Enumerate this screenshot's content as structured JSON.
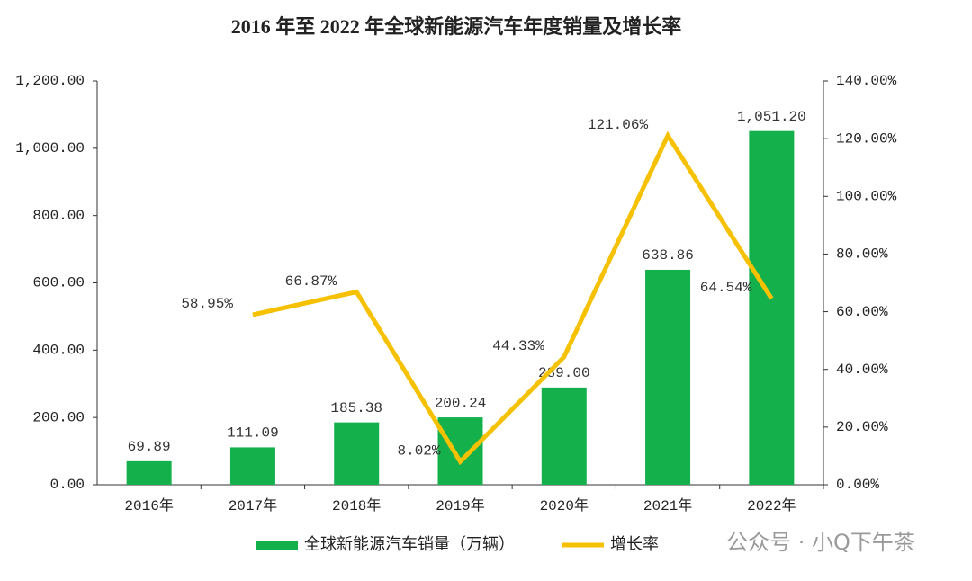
{
  "chart_data": {
    "type": "bar",
    "title": "2016 年至 2022 年全球新能源汽车年度销量及增长率",
    "categories": [
      "2016年",
      "2017年",
      "2018年",
      "2019年",
      "2020年",
      "2021年",
      "2022年"
    ],
    "series": [
      {
        "name": "全球新能源汽车销量（万辆）",
        "type": "bar",
        "color": "#13b04c",
        "values": [
          69.89,
          111.09,
          185.38,
          200.24,
          289.0,
          638.86,
          1051.2
        ],
        "value_labels": [
          "69.89",
          "111.09",
          "185.38",
          "200.24",
          "289.00",
          "638.86",
          "1,051.20"
        ]
      },
      {
        "name": "增长率",
        "type": "line",
        "axis": "y2",
        "color": "#f6c100",
        "values": [
          null,
          58.95,
          66.87,
          8.02,
          44.33,
          121.06,
          64.54
        ],
        "value_labels": [
          null,
          "58.95%",
          "66.87%",
          "8.02%",
          "44.33%",
          "121.06%",
          "64.54%"
        ]
      }
    ],
    "ylim": [
      0,
      1200
    ],
    "yticks": [
      {
        "value": 0,
        "label": "0.00"
      },
      {
        "value": 200,
        "label": "200.00"
      },
      {
        "value": 400,
        "label": "400.00"
      },
      {
        "value": 600,
        "label": "600.00"
      },
      {
        "value": 800,
        "label": "800.00"
      },
      {
        "value": 1000,
        "label": "1,000.00"
      },
      {
        "value": 1200,
        "label": "1,200.00"
      }
    ],
    "y2lim": [
      0,
      140
    ],
    "y2ticks": [
      {
        "value": 0,
        "label": "0.00%"
      },
      {
        "value": 20,
        "label": "20.00%"
      },
      {
        "value": 40,
        "label": "40.00%"
      },
      {
        "value": 60,
        "label": "60.00%"
      },
      {
        "value": 80,
        "label": "80.00%"
      },
      {
        "value": 100,
        "label": "100.00%"
      },
      {
        "value": 120,
        "label": "120.00%"
      },
      {
        "value": 140,
        "label": "140.00%"
      }
    ],
    "watermark": "公众号 · 小Q下午茶"
  }
}
